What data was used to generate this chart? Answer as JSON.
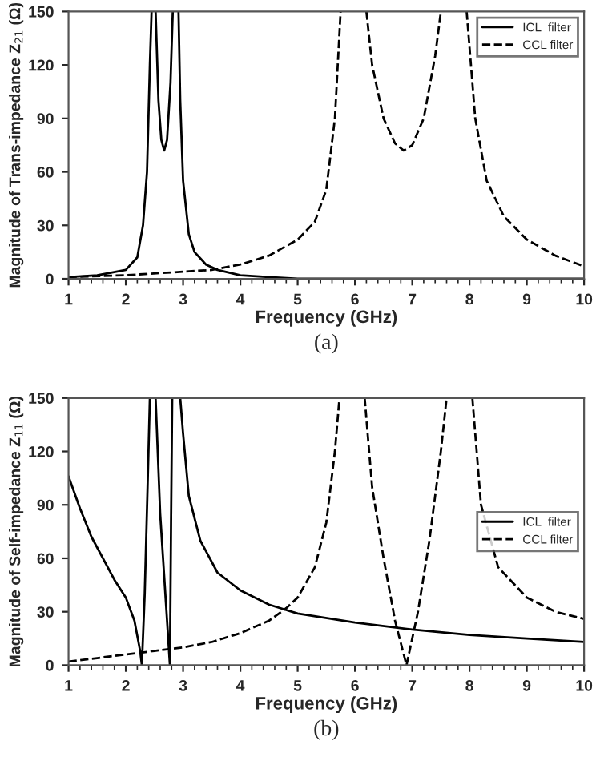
{
  "chart_data": [
    {
      "type": "line",
      "xlabel": "Frequency (GHz)",
      "ylabel": "Magnitude of Trans-impedance Z$_{21}$ (Ω)",
      "xlim": [
        1,
        10
      ],
      "ylim": [
        0,
        150
      ],
      "xticks": [
        1,
        2,
        3,
        4,
        5,
        6,
        7,
        8,
        9,
        10
      ],
      "yticks": [
        0,
        30,
        60,
        90,
        120,
        150
      ],
      "legend": "top right",
      "grid": false,
      "annotations": [
        "(a)"
      ],
      "series": [
        {
          "name": "ICL  filter",
          "color": "#000000",
          "line_style": "solid",
          "x": [
            1,
            1.5,
            2,
            2.2,
            2.3,
            2.37,
            2.42,
            2.45,
            2.48,
            2.52,
            2.57,
            2.62,
            2.67,
            2.72,
            2.78,
            2.82,
            2.87,
            2.92,
            2.95,
            3.0,
            3.1,
            3.2,
            3.4,
            3.6,
            4,
            4.5,
            5,
            6,
            8,
            10
          ],
          "values": [
            1,
            2,
            5,
            12,
            30,
            60,
            120,
            150,
            null,
            150,
            100,
            78,
            72,
            78,
            110,
            150,
            null,
            150,
            100,
            55,
            25,
            15,
            8,
            5,
            2,
            1,
            0,
            0,
            0,
            0
          ]
        },
        {
          "name": "CCL filter",
          "color": "#000000",
          "line_style": "dashed",
          "x": [
            1,
            2,
            3,
            3.5,
            4,
            4.5,
            5,
            5.3,
            5.5,
            5.65,
            5.75,
            6.0,
            6.2,
            6.3,
            6.5,
            6.7,
            6.85,
            7,
            7.2,
            7.4,
            7.5,
            7.7,
            7.95,
            8.1,
            8.3,
            8.6,
            9,
            9.5,
            10
          ],
          "values": [
            1,
            2,
            4,
            5,
            8,
            13,
            22,
            32,
            50,
            90,
            150,
            null,
            150,
            120,
            90,
            76,
            72,
            75,
            90,
            125,
            150,
            null,
            150,
            90,
            55,
            35,
            22,
            13,
            7
          ]
        }
      ]
    },
    {
      "type": "line",
      "xlabel": "Frequency (GHz)",
      "ylabel": "Magnitude of Self-impedance Z$_{11}$ (Ω)",
      "xlim": [
        1,
        10
      ],
      "ylim": [
        0,
        150
      ],
      "xticks": [
        1,
        2,
        3,
        4,
        5,
        6,
        7,
        8,
        9,
        10
      ],
      "yticks": [
        0,
        30,
        60,
        90,
        120,
        150
      ],
      "legend": "right",
      "grid": false,
      "annotations": [
        "(b)"
      ],
      "series": [
        {
          "name": "ICL  filter",
          "color": "#000000",
          "line_style": "solid",
          "x": [
            1,
            1.2,
            1.4,
            1.6,
            1.8,
            2,
            2.15,
            2.25,
            2.28,
            2.33,
            2.38,
            2.42,
            2.47,
            2.52,
            2.6,
            2.7,
            2.77,
            2.79,
            2.81,
            2.88,
            2.95,
            3,
            3.1,
            3.3,
            3.6,
            4,
            4.5,
            5,
            6,
            7,
            8,
            9,
            10
          ],
          "values": [
            106,
            88,
            72,
            60,
            48,
            38,
            25,
            8,
            0,
            40,
            100,
            150,
            null,
            150,
            85,
            35,
            0,
            80,
            150,
            null,
            150,
            130,
            95,
            70,
            52,
            42,
            34,
            29,
            24,
            20,
            17,
            15,
            13
          ]
        },
        {
          "name": "CCL filter",
          "color": "#000000",
          "line_style": "dashed",
          "x": [
            1,
            1.5,
            2,
            2.5,
            3,
            3.5,
            4,
            4.5,
            4.8,
            5,
            5.3,
            5.5,
            5.65,
            5.73,
            6.0,
            6.17,
            6.3,
            6.5,
            6.7,
            6.9,
            7.1,
            7.3,
            7.5,
            7.6,
            7.8,
            8.05,
            8.2,
            8.5,
            9,
            9.5,
            10
          ],
          "values": [
            2,
            4,
            6,
            8,
            10,
            13,
            18,
            25,
            32,
            38,
            55,
            80,
            120,
            150,
            null,
            150,
            100,
            60,
            25,
            0,
            30,
            70,
            120,
            150,
            null,
            150,
            90,
            55,
            38,
            30,
            26
          ]
        }
      ]
    }
  ]
}
